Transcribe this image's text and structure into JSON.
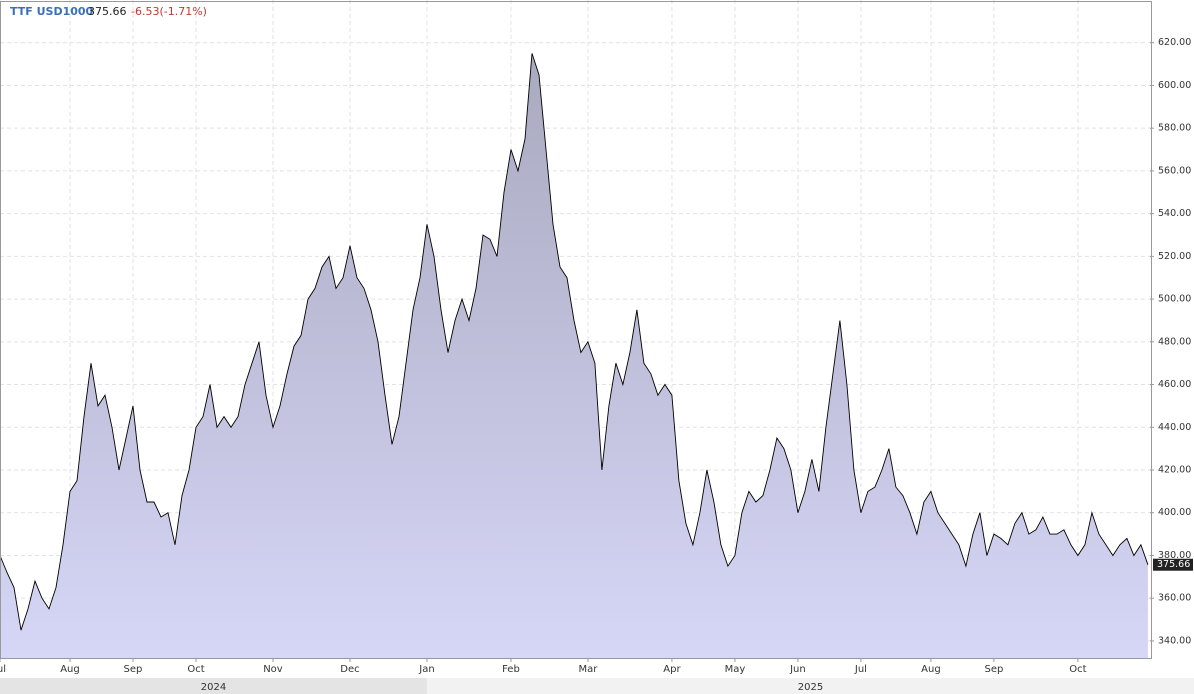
{
  "header": {
    "symbol": "TTF USD1000",
    "last": "375.66",
    "change": "-6.53(-1.71%)"
  },
  "chart_data": {
    "type": "area",
    "color": "#000000",
    "fill_top": "#a9a9bf",
    "fill_bottom": "#d6d6f7",
    "grid": true,
    "values": [
      380,
      372,
      365,
      345,
      355,
      368,
      360,
      355,
      365,
      385,
      410,
      415,
      445,
      470,
      450,
      455,
      440,
      420,
      435,
      450,
      420,
      405,
      405,
      398,
      400,
      385,
      408,
      420,
      440,
      445,
      460,
      440,
      445,
      440,
      445,
      460,
      470,
      480,
      455,
      440,
      450,
      465,
      478,
      483,
      500,
      505,
      515,
      520,
      505,
      510,
      525,
      510,
      505,
      495,
      480,
      455,
      432,
      445,
      470,
      495,
      510,
      535,
      520,
      495,
      475,
      490,
      500,
      490,
      505,
      530,
      528,
      520,
      550,
      570,
      560,
      575,
      615,
      605,
      570,
      535,
      515,
      510,
      490,
      475,
      480,
      470,
      420,
      450,
      470,
      460,
      475,
      495,
      470,
      465,
      455,
      460,
      455,
      415,
      395,
      385,
      400,
      420,
      405,
      385,
      375,
      380,
      400,
      410,
      405,
      408,
      420,
      435,
      430,
      420,
      400,
      410,
      425,
      410,
      440,
      465,
      490,
      460,
      420,
      400,
      410,
      412,
      420,
      430,
      412,
      408,
      400,
      390,
      405,
      410,
      400,
      395,
      390,
      385,
      375,
      390,
      400,
      380,
      390,
      388,
      385,
      395,
      400,
      390,
      392,
      398,
      390,
      390,
      392,
      385,
      380,
      385,
      400,
      390,
      385,
      380,
      385,
      388,
      380,
      385,
      375.66
    ],
    "xlim": [
      0,
      164.3
    ],
    "xticks": [
      {
        "value": 0,
        "label": "Jul"
      },
      {
        "value": 10,
        "label": "Aug"
      },
      {
        "value": 19,
        "label": "Sep"
      },
      {
        "value": 28,
        "label": "Oct"
      },
      {
        "value": 39,
        "label": "Nov"
      },
      {
        "value": 50,
        "label": "Dec"
      },
      {
        "value": 61,
        "label": "Jan"
      },
      {
        "value": 73,
        "label": "Feb"
      },
      {
        "value": 84,
        "label": "Mar"
      },
      {
        "value": 96,
        "label": "Apr"
      },
      {
        "value": 105,
        "label": "May"
      },
      {
        "value": 114,
        "label": "Jun"
      },
      {
        "value": 123,
        "label": "Jul"
      },
      {
        "value": 133,
        "label": "Aug"
      },
      {
        "value": 142,
        "label": "Sep"
      },
      {
        "value": 154,
        "label": "Oct"
      }
    ],
    "year_groups": [
      {
        "label": "2024",
        "start": 0
      },
      {
        "label": "2025",
        "start": 61
      }
    ],
    "ylim": [
      332,
      640
    ],
    "yticks": [
      {
        "value": 340,
        "label": "340.00"
      },
      {
        "value": 360,
        "label": "360.00"
      },
      {
        "value": 380,
        "label": "380.00"
      },
      {
        "value": 400,
        "label": "400.00"
      },
      {
        "value": 420,
        "label": "420.00"
      },
      {
        "value": 440,
        "label": "440.00"
      },
      {
        "value": 460,
        "label": "460.00"
      },
      {
        "value": 480,
        "label": "480.00"
      },
      {
        "value": 500,
        "label": "500.00"
      },
      {
        "value": 520,
        "label": "520.00"
      },
      {
        "value": 540,
        "label": "540.00"
      },
      {
        "value": 560,
        "label": "560.00"
      },
      {
        "value": 580,
        "label": "580.00"
      },
      {
        "value": 600,
        "label": "600.00"
      },
      {
        "value": 620,
        "label": "620.00"
      }
    ]
  }
}
